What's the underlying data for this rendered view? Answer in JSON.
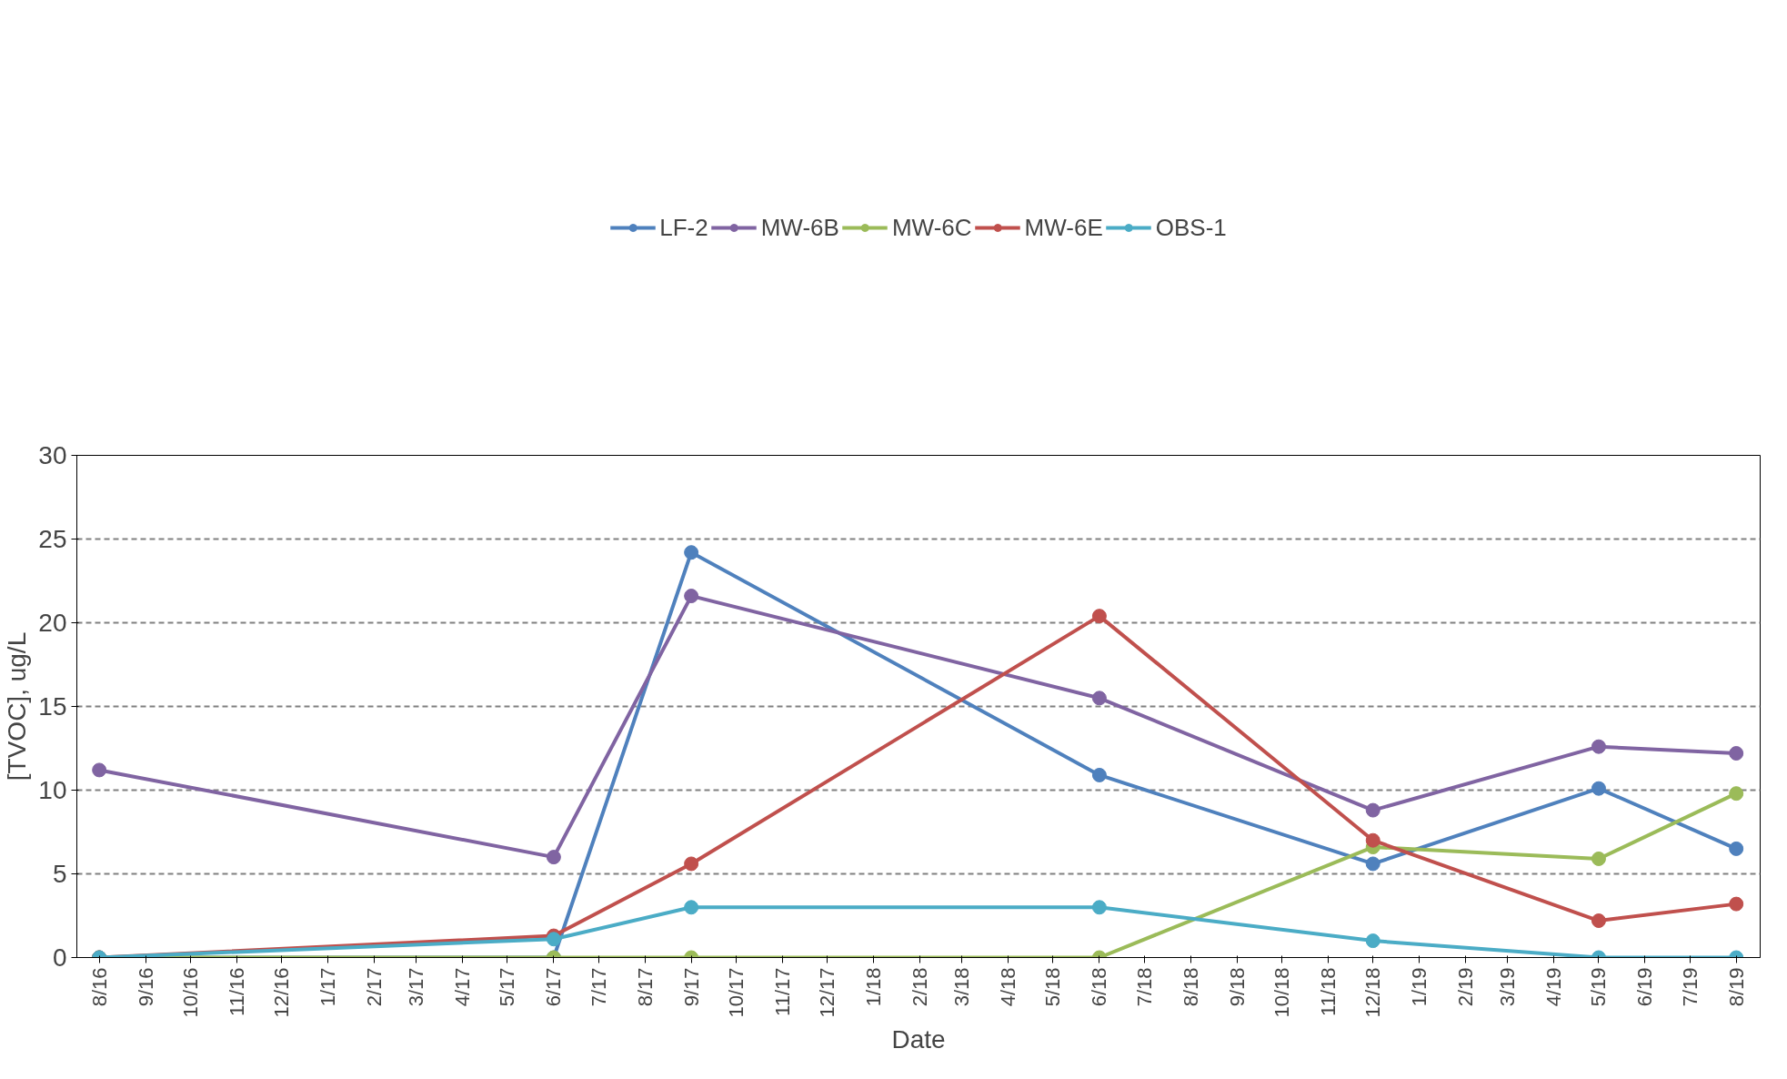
{
  "chart_data": {
    "type": "line",
    "xlabel": "Date",
    "ylabel": "[TVOC], ug/L",
    "x": [
      "2016-08-15",
      "2017-06-15",
      "2017-09-15",
      "2018-06-15",
      "2018-12-15",
      "2019-05-15",
      "2019-08-15"
    ],
    "series": [
      {
        "name": "LF-2",
        "color": "#4f81bd",
        "values": [
          0,
          0,
          24.2,
          10.9,
          5.6,
          10.1,
          6.5
        ]
      },
      {
        "name": "MW-6B",
        "color": "#8064a2",
        "values": [
          11.2,
          6.0,
          21.6,
          15.5,
          8.8,
          12.6,
          12.2
        ]
      },
      {
        "name": "MW-6C",
        "color": "#9bbb59",
        "values": [
          0,
          0,
          0,
          0,
          6.6,
          5.9,
          9.8
        ]
      },
      {
        "name": "MW-6E",
        "color": "#c0504d",
        "values": [
          0,
          1.3,
          5.6,
          20.4,
          7.0,
          2.2,
          3.2
        ]
      },
      {
        "name": "OBS-1",
        "color": "#4bacc6",
        "values": [
          0,
          1.1,
          3.0,
          3.0,
          1.0,
          0,
          0
        ]
      }
    ],
    "xlim": [
      "2016-07-31",
      "2019-08-31"
    ],
    "xticks": [
      {
        "value": "2016-08-15",
        "label": "8/16"
      },
      {
        "value": "2016-09-15",
        "label": "9/16"
      },
      {
        "value": "2016-10-15",
        "label": "10/16"
      },
      {
        "value": "2016-11-15",
        "label": "11/16"
      },
      {
        "value": "2016-12-15",
        "label": "12/16"
      },
      {
        "value": "2017-01-15",
        "label": "1/17"
      },
      {
        "value": "2017-02-15",
        "label": "2/17"
      },
      {
        "value": "2017-03-15",
        "label": "3/17"
      },
      {
        "value": "2017-04-15",
        "label": "4/17"
      },
      {
        "value": "2017-05-15",
        "label": "5/17"
      },
      {
        "value": "2017-06-15",
        "label": "6/17"
      },
      {
        "value": "2017-07-15",
        "label": "7/17"
      },
      {
        "value": "2017-08-15",
        "label": "8/17"
      },
      {
        "value": "2017-09-15",
        "label": "9/17"
      },
      {
        "value": "2017-10-15",
        "label": "10/17"
      },
      {
        "value": "2017-11-15",
        "label": "11/17"
      },
      {
        "value": "2017-12-15",
        "label": "12/17"
      },
      {
        "value": "2018-01-15",
        "label": "1/18"
      },
      {
        "value": "2018-02-15",
        "label": "2/18"
      },
      {
        "value": "2018-03-15",
        "label": "3/18"
      },
      {
        "value": "2018-04-15",
        "label": "4/18"
      },
      {
        "value": "2018-05-15",
        "label": "5/18"
      },
      {
        "value": "2018-06-15",
        "label": "6/18"
      },
      {
        "value": "2018-07-15",
        "label": "7/18"
      },
      {
        "value": "2018-08-15",
        "label": "8/18"
      },
      {
        "value": "2018-09-15",
        "label": "9/18"
      },
      {
        "value": "2018-10-15",
        "label": "10/18"
      },
      {
        "value": "2018-11-15",
        "label": "11/18"
      },
      {
        "value": "2018-12-15",
        "label": "12/18"
      },
      {
        "value": "2019-01-15",
        "label": "1/19"
      },
      {
        "value": "2019-02-15",
        "label": "2/19"
      },
      {
        "value": "2019-03-15",
        "label": "3/19"
      },
      {
        "value": "2019-04-15",
        "label": "4/19"
      },
      {
        "value": "2019-05-15",
        "label": "5/19"
      },
      {
        "value": "2019-06-15",
        "label": "6/19"
      },
      {
        "value": "2019-07-15",
        "label": "7/19"
      },
      {
        "value": "2019-08-15",
        "label": "8/19"
      }
    ],
    "ylim": [
      0,
      30
    ],
    "yticks": [
      0,
      5,
      10,
      15,
      20,
      25,
      30
    ],
    "grid": "y",
    "legend": "top",
    "marker": "circle",
    "line_style": "solid"
  }
}
